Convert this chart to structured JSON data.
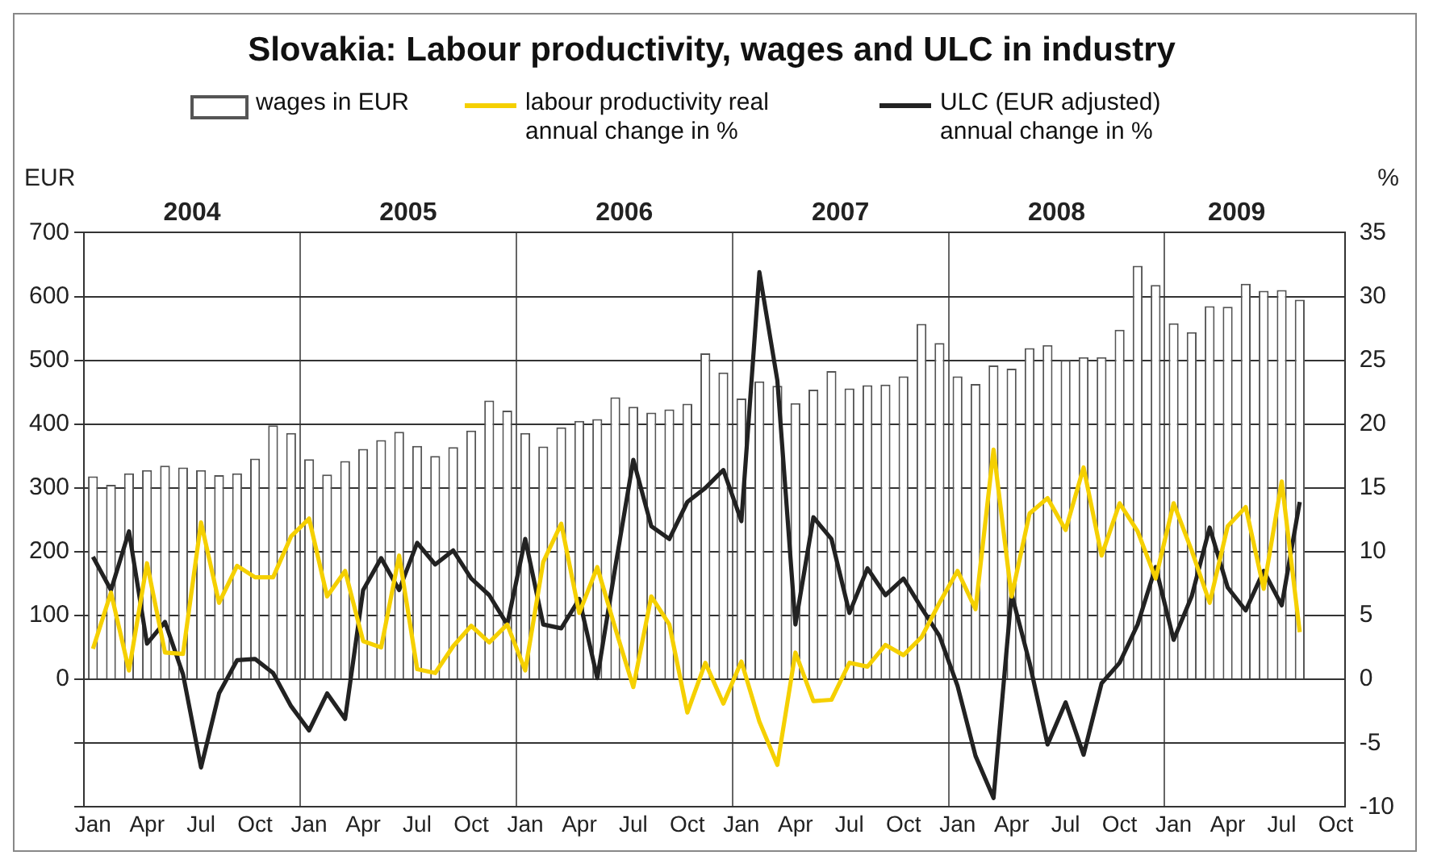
{
  "chart_data": {
    "type": "bar",
    "title": "Slovakia: Labour productivity, wages and ULC in industry",
    "ylabel": "EUR",
    "y2label": "%",
    "categories": [
      "Jan",
      null,
      null,
      "Apr",
      null,
      null,
      "Jul",
      null,
      null,
      "Oct",
      null,
      null,
      "Jan",
      null,
      null,
      "Apr",
      null,
      null,
      "Jul",
      null,
      null,
      "Oct",
      null,
      null,
      "Jan",
      null,
      null,
      "Apr",
      null,
      null,
      "Jul",
      null,
      null,
      "Oct",
      null,
      null,
      "Jan",
      null,
      null,
      "Apr",
      null,
      null,
      "Jul",
      null,
      null,
      "Oct",
      null,
      null,
      "Jan",
      null,
      null,
      "Apr",
      null,
      null,
      "Jul",
      null,
      null,
      "Oct",
      null,
      null,
      "Jan",
      null,
      null,
      "Apr",
      null,
      null,
      "Jul",
      null,
      null,
      "Oct"
    ],
    "annotations": [
      "2004",
      "2005",
      "2006",
      "2007",
      "2008",
      "2009"
    ],
    "series": [
      {
        "name": "wages in EUR",
        "color": "#555555",
        "values": [
          318,
          305,
          323,
          328,
          335,
          332,
          328,
          320,
          323,
          346,
          398,
          386,
          345,
          321,
          342,
          361,
          375,
          388,
          366,
          350,
          364,
          390,
          437,
          421,
          386,
          365,
          395,
          405,
          408,
          442,
          427,
          418,
          423,
          432,
          511,
          481,
          440,
          467,
          460,
          433,
          454,
          483,
          456,
          461,
          462,
          475,
          557,
          527,
          475,
          463,
          492,
          487,
          519,
          524,
          500,
          505,
          505,
          548,
          648,
          618,
          558,
          544,
          585,
          584,
          620,
          609,
          610,
          595,
          null,
          null
        ]
      },
      {
        "name": "labour productivity real annual change in %",
        "type": "line",
        "axis": "y2",
        "color": "#f5d000",
        "values": [
          2.4,
          6.8,
          0.7,
          9.1,
          2.1,
          2.0,
          12.3,
          6.0,
          8.9,
          8.0,
          8.0,
          11.2,
          12.6,
          6.5,
          8.5,
          3.0,
          2.5,
          9.7,
          0.8,
          0.5,
          2.6,
          4.2,
          2.9,
          4.3,
          0.7,
          9.2,
          12.2,
          5.2,
          8.8,
          4.0,
          -0.6,
          6.5,
          4.3,
          -2.6,
          1.3,
          -1.9,
          1.4,
          -3.3,
          -6.7,
          2.1,
          -1.7,
          -1.6,
          1.3,
          1.0,
          2.7,
          1.9,
          3.3,
          6.0,
          8.5,
          5.5,
          18.0,
          6.5,
          13.0,
          14.2,
          11.7,
          16.6,
          9.7,
          13.8,
          11.6,
          7.9,
          13.8,
          10.1,
          6.0,
          12.0,
          13.5,
          7.1,
          15.5,
          3.7,
          null,
          null
        ]
      },
      {
        "name": "ULC (EUR adjusted) annual change in %",
        "type": "line",
        "axis": "y2",
        "color": "#222222",
        "values": [
          9.6,
          7.0,
          11.6,
          2.8,
          4.5,
          0.4,
          -6.9,
          -1.1,
          1.5,
          1.6,
          0.5,
          -2.1,
          -4.0,
          -1.1,
          -3.1,
          7.0,
          9.5,
          7.0,
          10.7,
          9.0,
          10.1,
          7.9,
          6.6,
          4.3,
          11.0,
          4.3,
          4.0,
          6.3,
          0.1,
          8.8,
          17.2,
          12.0,
          11.0,
          13.9,
          15.0,
          16.4,
          12.4,
          31.9,
          23.4,
          4.3,
          12.7,
          11.0,
          5.2,
          8.7,
          6.6,
          7.9,
          5.6,
          3.4,
          -0.5,
          -6.0,
          -9.3,
          6.7,
          1.3,
          -5.1,
          -1.8,
          -5.9,
          -0.3,
          1.3,
          4.3,
          8.8,
          3.1,
          6.5,
          11.9,
          7.2,
          5.4,
          8.5,
          5.8,
          13.9,
          null,
          null
        ]
      }
    ],
    "ylim": [
      -200,
      700
    ],
    "yticks": [
      {
        "value": -200,
        "label": null
      },
      {
        "value": -100,
        "label": null
      },
      0,
      100,
      200,
      300,
      400,
      500,
      600,
      700
    ],
    "y2lim": [
      -10,
      35
    ],
    "y2ticks": [
      -10,
      -5,
      0,
      5,
      10,
      15,
      20,
      25,
      30,
      35
    ],
    "grid": true,
    "legend": "top",
    "marker": "none"
  }
}
